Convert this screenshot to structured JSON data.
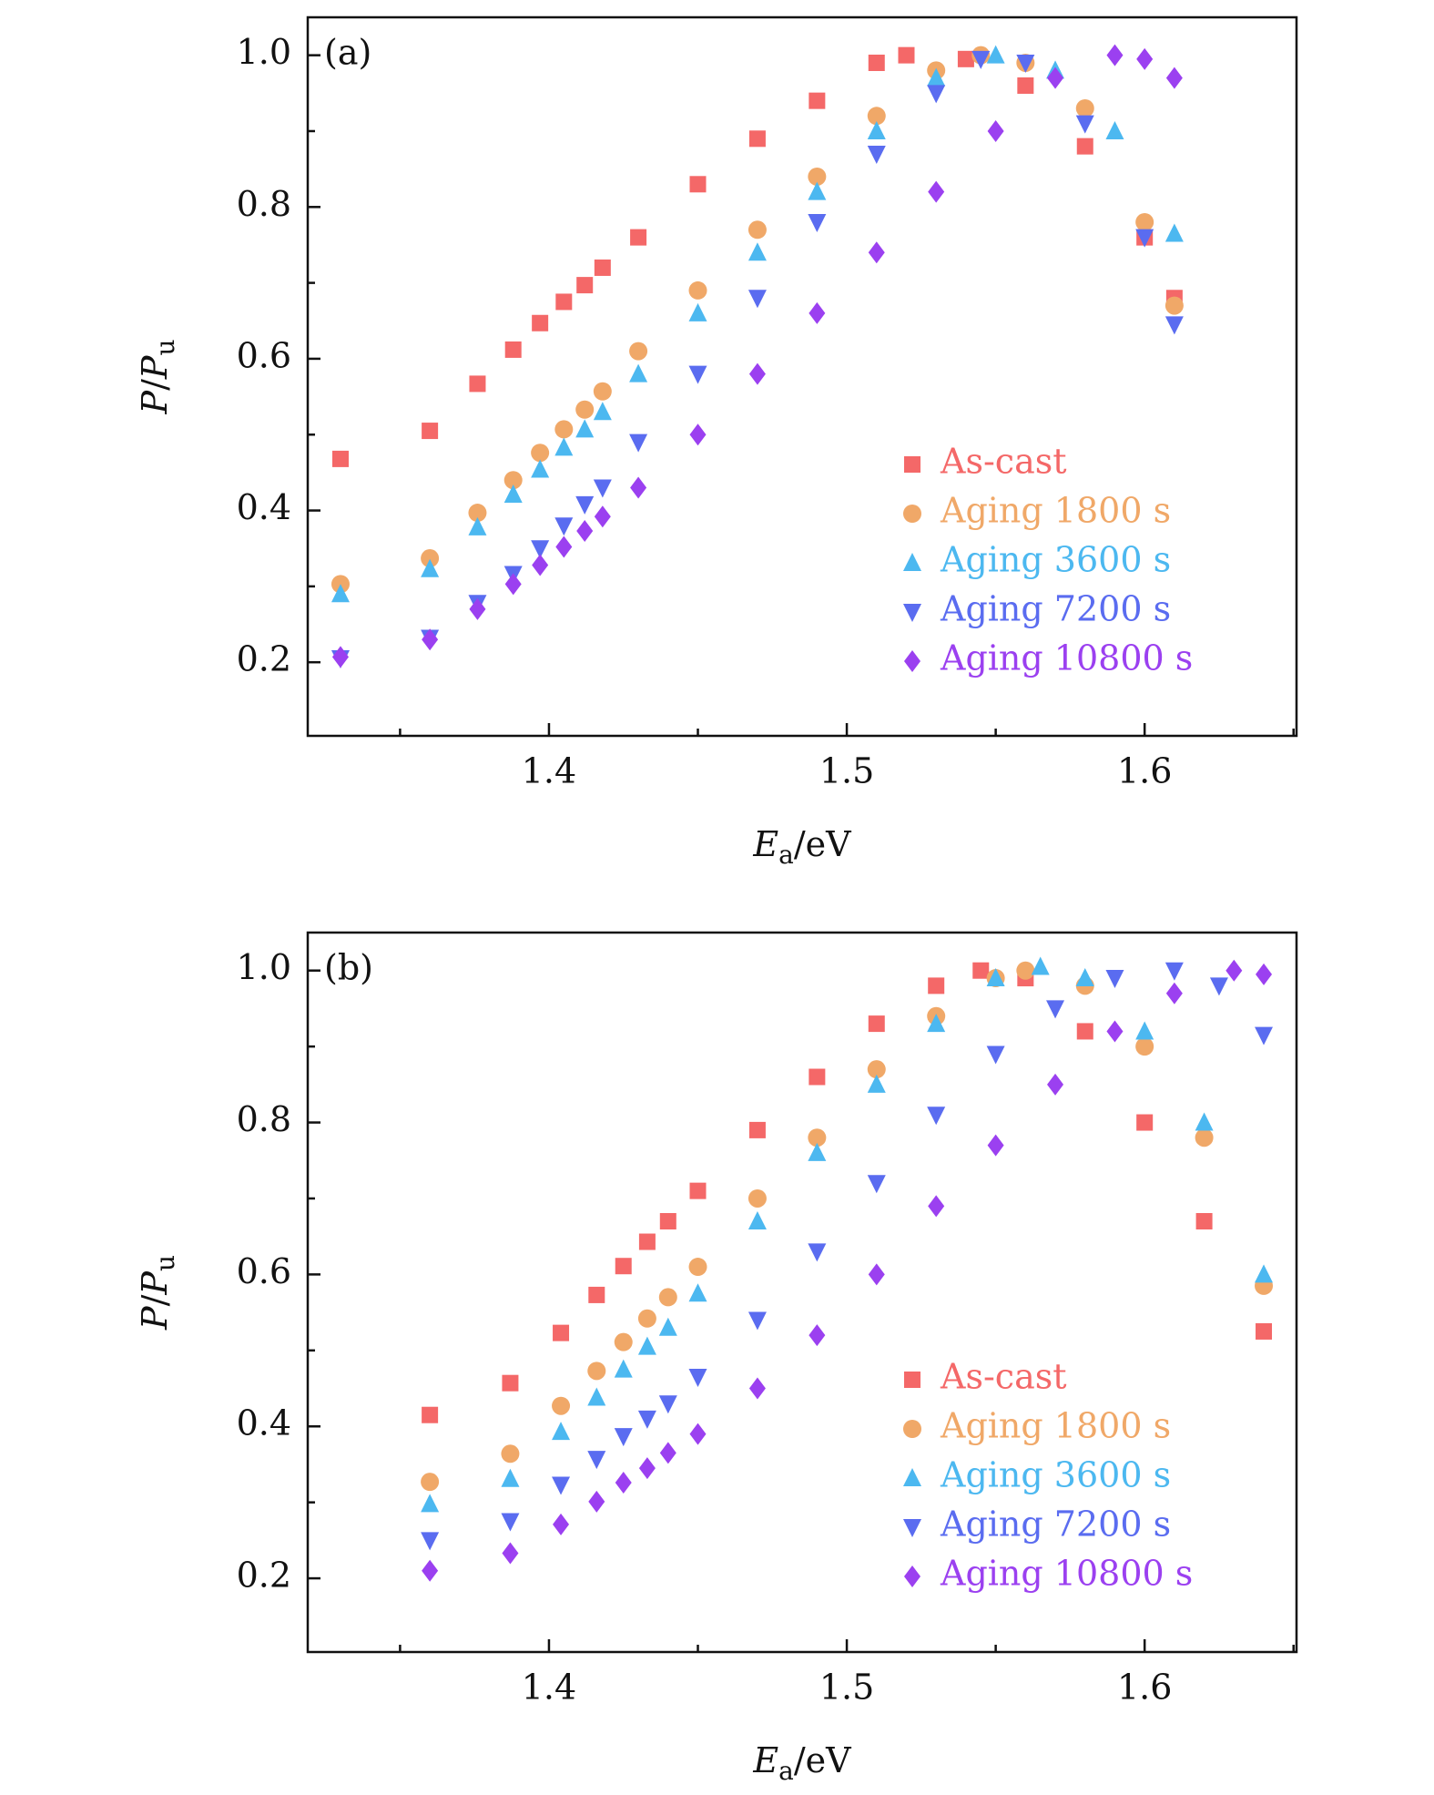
{
  "chart_data": [
    {
      "type": "scatter",
      "label": "(a)",
      "xlabel": [
        "E",
        "a",
        "/eV"
      ],
      "ylabel": [
        "P",
        "/",
        "P",
        "u"
      ],
      "xlim": [
        1.319,
        1.651
      ],
      "ylim": [
        0.103,
        1.05
      ],
      "xticks": [
        1.4,
        1.5,
        1.6
      ],
      "xminorticks": [
        1.35,
        1.45,
        1.55,
        1.65
      ],
      "yticks": [
        0.2,
        0.4,
        0.6,
        0.8,
        {
          "value": 1,
          "label": "1.0"
        }
      ],
      "yminorticks": [
        0.3,
        0.5,
        0.7,
        0.9
      ],
      "series": [
        {
          "name": "As-cast",
          "color": "#f46868",
          "marker": "square",
          "x": [
            1.33,
            1.36,
            1.376,
            1.388,
            1.397,
            1.405,
            1.412,
            1.418,
            1.43,
            1.45,
            1.47,
            1.49,
            1.51,
            1.52,
            1.54,
            1.56,
            1.58,
            1.6,
            1.61
          ],
          "values": [
            0.468,
            0.505,
            0.567,
            0.612,
            0.647,
            0.675,
            0.697,
            0.72,
            0.76,
            0.83,
            0.89,
            0.94,
            0.99,
            1.0,
            0.995,
            0.96,
            0.88,
            0.76,
            0.68
          ]
        },
        {
          "name": "Aging 1800 s",
          "color": "#f0a868",
          "marker": "circle",
          "x": [
            1.33,
            1.36,
            1.376,
            1.388,
            1.397,
            1.405,
            1.412,
            1.418,
            1.43,
            1.45,
            1.47,
            1.49,
            1.51,
            1.53,
            1.545,
            1.56,
            1.58,
            1.6,
            1.61
          ],
          "values": [
            0.303,
            0.337,
            0.397,
            0.44,
            0.476,
            0.507,
            0.533,
            0.557,
            0.61,
            0.69,
            0.77,
            0.84,
            0.92,
            0.98,
            1.0,
            0.99,
            0.93,
            0.78,
            0.67
          ]
        },
        {
          "name": "Aging 3600 s",
          "color": "#4cb8f0",
          "marker": "triangle",
          "x": [
            1.33,
            1.36,
            1.376,
            1.388,
            1.397,
            1.405,
            1.412,
            1.418,
            1.43,
            1.45,
            1.47,
            1.49,
            1.51,
            1.53,
            1.55,
            1.57,
            1.59,
            1.61
          ],
          "values": [
            0.29,
            0.323,
            0.378,
            0.421,
            0.454,
            0.483,
            0.507,
            0.53,
            0.58,
            0.66,
            0.74,
            0.82,
            0.9,
            0.97,
            1.0,
            0.98,
            0.9,
            0.765
          ]
        },
        {
          "name": "Aging 7200 s",
          "color": "#5a6cf0",
          "marker": "down-triangle",
          "x": [
            1.33,
            1.36,
            1.376,
            1.388,
            1.397,
            1.405,
            1.412,
            1.418,
            1.43,
            1.45,
            1.47,
            1.49,
            1.51,
            1.53,
            1.545,
            1.56,
            1.58,
            1.6,
            1.61
          ],
          "values": [
            0.205,
            0.232,
            0.278,
            0.316,
            0.35,
            0.38,
            0.408,
            0.43,
            0.49,
            0.58,
            0.68,
            0.78,
            0.87,
            0.95,
            0.995,
            0.99,
            0.91,
            0.76,
            0.645
          ]
        },
        {
          "name": "Aging 10800 s",
          "color": "#9b40f0",
          "marker": "diamond",
          "x": [
            1.33,
            1.36,
            1.376,
            1.388,
            1.397,
            1.405,
            1.412,
            1.418,
            1.43,
            1.45,
            1.47,
            1.49,
            1.51,
            1.53,
            1.55,
            1.57,
            1.59,
            1.6,
            1.61
          ],
          "values": [
            0.207,
            0.23,
            0.27,
            0.303,
            0.328,
            0.352,
            0.373,
            0.392,
            0.43,
            0.5,
            0.58,
            0.66,
            0.74,
            0.82,
            0.9,
            0.97,
            1.0,
            0.995,
            0.97
          ]
        }
      ]
    },
    {
      "type": "scatter",
      "label": "(b)",
      "xlabel": [
        "E",
        "a",
        "/eV"
      ],
      "ylabel": [
        "P",
        "/",
        "P",
        "u"
      ],
      "xlim": [
        1.319,
        1.651
      ],
      "ylim": [
        0.103,
        1.05
      ],
      "xticks": [
        1.4,
        1.5,
        1.6
      ],
      "xminorticks": [
        1.35,
        1.45,
        1.55,
        1.65
      ],
      "yticks": [
        0.2,
        0.4,
        0.6,
        0.8,
        {
          "value": 1,
          "label": "1.0"
        }
      ],
      "yminorticks": [
        0.3,
        0.5,
        0.7,
        0.9
      ],
      "series": [
        {
          "name": "As-cast",
          "color": "#f46868",
          "marker": "square",
          "x": [
            1.36,
            1.387,
            1.404,
            1.416,
            1.425,
            1.433,
            1.44,
            1.45,
            1.47,
            1.49,
            1.51,
            1.53,
            1.545,
            1.56,
            1.58,
            1.6,
            1.62,
            1.64
          ],
          "values": [
            0.415,
            0.457,
            0.523,
            0.573,
            0.611,
            0.643,
            0.67,
            0.71,
            0.79,
            0.86,
            0.93,
            0.98,
            1.0,
            0.99,
            0.92,
            0.8,
            0.67,
            0.525
          ]
        },
        {
          "name": "Aging 1800 s",
          "color": "#f0a868",
          "marker": "circle",
          "x": [
            1.36,
            1.387,
            1.404,
            1.416,
            1.425,
            1.433,
            1.44,
            1.45,
            1.47,
            1.49,
            1.51,
            1.53,
            1.55,
            1.56,
            1.58,
            1.6,
            1.62,
            1.64
          ],
          "values": [
            0.327,
            0.364,
            0.427,
            0.473,
            0.511,
            0.542,
            0.57,
            0.61,
            0.7,
            0.78,
            0.87,
            0.94,
            0.99,
            1.0,
            0.98,
            0.9,
            0.78,
            0.585
          ]
        },
        {
          "name": "Aging 3600 s",
          "color": "#4cb8f0",
          "marker": "triangle",
          "x": [
            1.36,
            1.387,
            1.404,
            1.416,
            1.425,
            1.433,
            1.44,
            1.45,
            1.47,
            1.49,
            1.51,
            1.53,
            1.55,
            1.565,
            1.58,
            1.6,
            1.62,
            1.64
          ],
          "values": [
            0.298,
            0.331,
            0.393,
            0.438,
            0.475,
            0.505,
            0.53,
            0.575,
            0.67,
            0.76,
            0.85,
            0.93,
            0.99,
            1.005,
            0.99,
            0.92,
            0.8,
            0.6
          ]
        },
        {
          "name": "Aging 7200 s",
          "color": "#5a6cf0",
          "marker": "down-triangle",
          "x": [
            1.36,
            1.387,
            1.404,
            1.416,
            1.425,
            1.433,
            1.44,
            1.45,
            1.47,
            1.49,
            1.51,
            1.53,
            1.55,
            1.57,
            1.59,
            1.61,
            1.625,
            1.64
          ],
          "values": [
            0.25,
            0.275,
            0.323,
            0.357,
            0.387,
            0.41,
            0.43,
            0.465,
            0.54,
            0.63,
            0.72,
            0.81,
            0.89,
            0.95,
            0.99,
            1.0,
            0.98,
            0.915
          ]
        },
        {
          "name": "Aging 10800 s",
          "color": "#9b40f0",
          "marker": "diamond",
          "x": [
            1.36,
            1.387,
            1.404,
            1.416,
            1.425,
            1.433,
            1.44,
            1.45,
            1.47,
            1.49,
            1.51,
            1.53,
            1.55,
            1.57,
            1.59,
            1.61,
            1.63,
            1.64
          ],
          "values": [
            0.21,
            0.233,
            0.271,
            0.301,
            0.326,
            0.345,
            0.365,
            0.39,
            0.45,
            0.52,
            0.6,
            0.69,
            0.77,
            0.85,
            0.92,
            0.97,
            1.0,
            0.995
          ]
        }
      ]
    }
  ]
}
